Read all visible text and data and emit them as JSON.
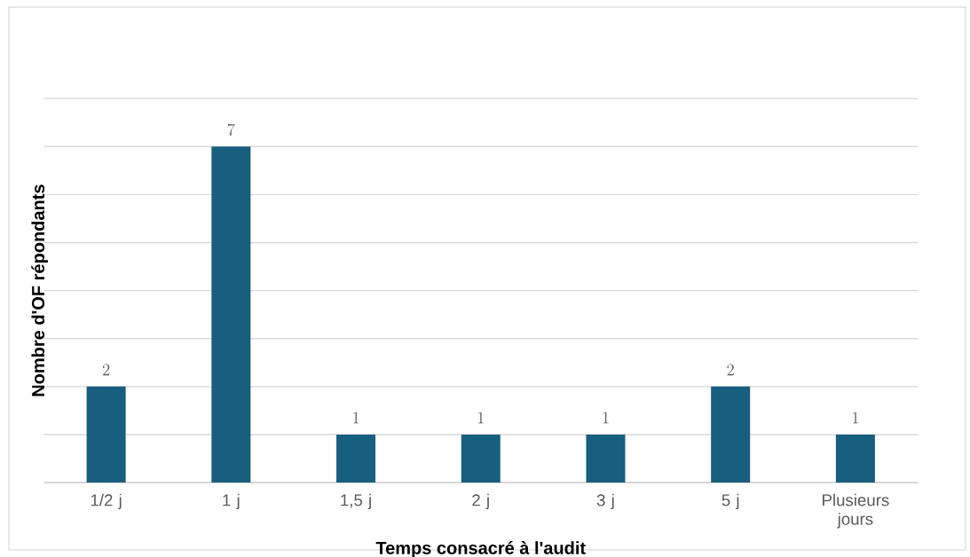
{
  "chart_data": {
    "type": "bar",
    "xlabel": "Temps consacré à l'audit",
    "ylabel": "Nombre d'OF répondants",
    "categories": [
      "1/2 j",
      "1 j",
      "1,5 j",
      "2 j",
      "3 j",
      "5 j",
      "Plusieurs jours"
    ],
    "values": [
      2,
      7,
      1,
      1,
      1,
      2,
      1
    ],
    "color": "#175e7f",
    "ylim": [
      0,
      8
    ],
    "yticks": [
      {
        "value": 0,
        "label": null
      },
      {
        "value": 1,
        "label": null
      },
      {
        "value": 2,
        "label": null
      },
      {
        "value": 3,
        "label": null
      },
      {
        "value": 4,
        "label": null
      },
      {
        "value": 5,
        "label": null
      },
      {
        "value": 6,
        "label": null
      },
      {
        "value": 7,
        "label": null
      },
      {
        "value": 8,
        "label": null
      }
    ],
    "tick_labels": "x",
    "grid": "y",
    "data_labels": true
  }
}
